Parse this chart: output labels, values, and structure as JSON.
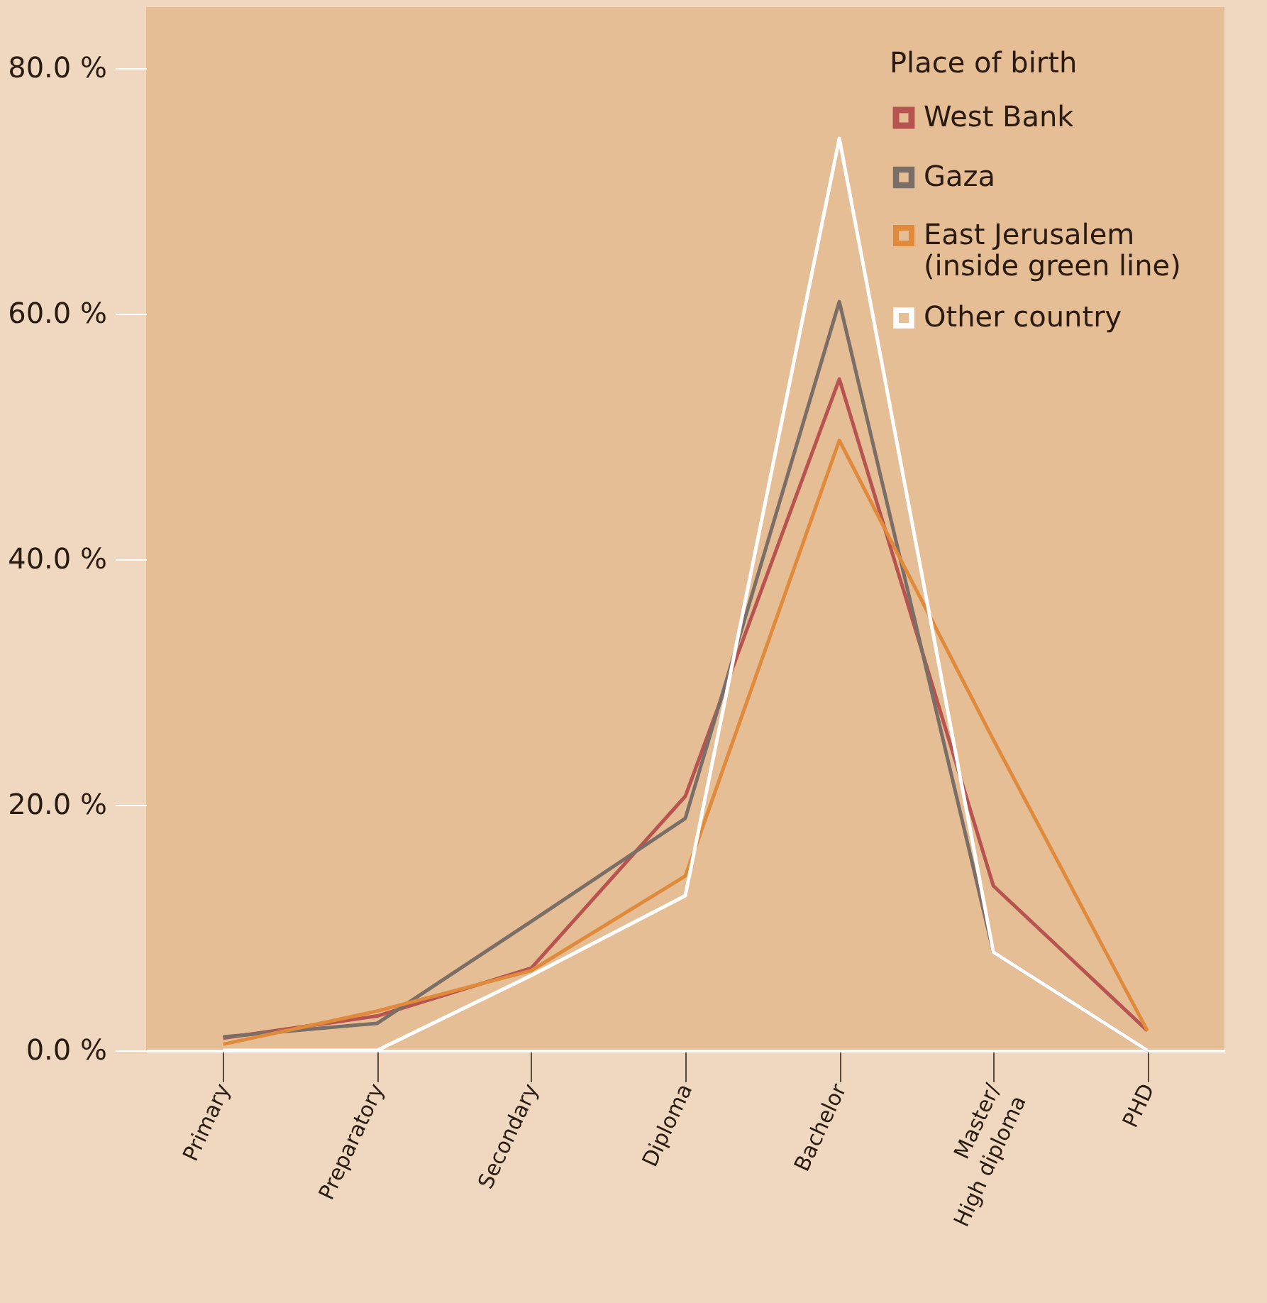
{
  "chart_data": {
    "type": "line",
    "legend_title": "Place of birth",
    "legend": "top right",
    "grid": false,
    "marker": "none",
    "categories": [
      "Primary",
      "Preparatory",
      "Secondary",
      "Diploma",
      "Bachelor",
      "Master/\nHigh diploma",
      "PHD"
    ],
    "ylim": [
      0,
      85
    ],
    "yticks": [
      {
        "value": 0,
        "label": "0.0 %"
      },
      {
        "value": 20,
        "label": "20.0 %"
      },
      {
        "value": 40,
        "label": "40.0 %"
      },
      {
        "value": 60,
        "label": "60.0 %"
      },
      {
        "value": 80,
        "label": "80.0 %"
      }
    ],
    "series": [
      {
        "name": "West Bank",
        "color": "#b85450",
        "values": [
          1.0,
          2.8,
          6.7,
          20.7,
          54.7,
          13.4,
          1.6
        ]
      },
      {
        "name": "Gaza",
        "color": "#7b6e66",
        "values": [
          1.1,
          2.2,
          10.5,
          18.9,
          61.0,
          8.0,
          0
        ]
      },
      {
        "name": "East Jerusalem\n(inside green line)",
        "color": "#e08a3c",
        "values": [
          0.5,
          3.2,
          6.5,
          14.2,
          49.7,
          25.3,
          1.6
        ]
      },
      {
        "name": "Other country",
        "color": "#ffffff",
        "values": [
          0,
          0,
          6.1,
          12.6,
          74.3,
          8.0,
          0
        ]
      }
    ]
  }
}
